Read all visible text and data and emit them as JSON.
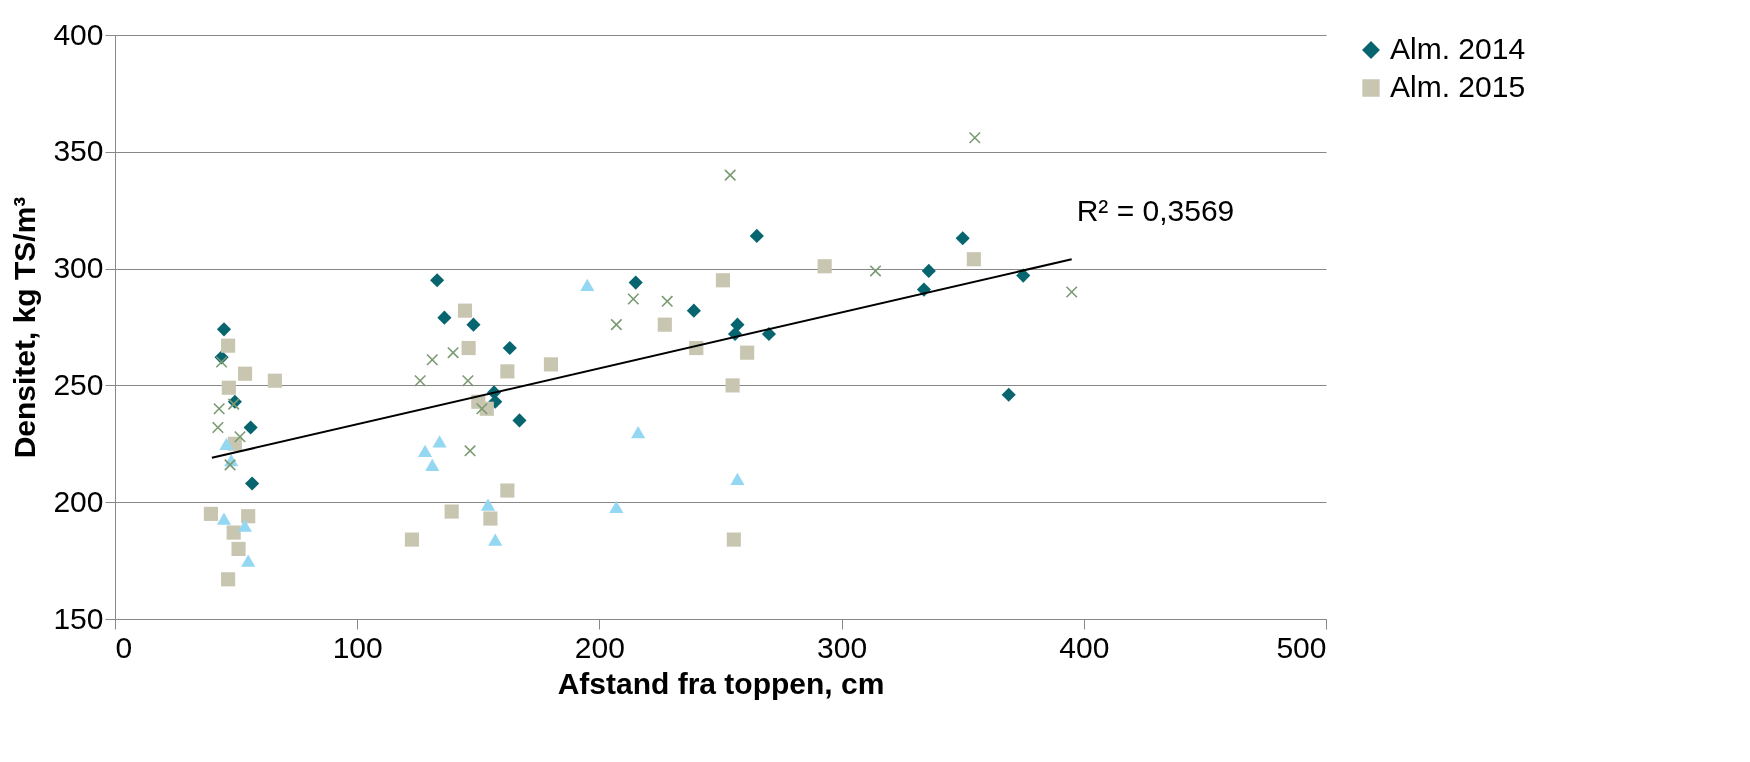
{
  "chart_data": {
    "type": "scatter",
    "xlabel": "Afstand fra toppen, cm",
    "ylabel": "Densitet, kg TS/m³",
    "xlim": [
      0,
      500
    ],
    "xticks": [
      0,
      100,
      200,
      300,
      400,
      500
    ],
    "ylim": [
      150,
      400
    ],
    "yticks": [
      150,
      200,
      250,
      300,
      350,
      400
    ],
    "grid": "y",
    "legend": "right",
    "annotations": [
      {
        "text": "R² = 0,3569",
        "x": 395,
        "y": 304
      }
    ],
    "series": [
      {
        "name": "Alm. 2014",
        "color": "#06656f",
        "marker": "diamond",
        "x": [
          45,
          44,
          49.5,
          56,
          56.6,
          133,
          136,
          148,
          163,
          156.5,
          157,
          167,
          215,
          239,
          257,
          256,
          270,
          265,
          336,
          334,
          350,
          375,
          369
        ],
        "values": [
          274,
          262,
          243,
          232,
          208,
          295,
          279,
          276,
          266,
          247,
          243,
          235,
          294,
          282,
          276,
          272,
          272,
          314,
          299,
          291,
          313,
          297,
          246
        ]
      },
      {
        "name": "Alm. 2015",
        "color": "#c8c6b0",
        "marker": "square",
        "x": [
          46.7,
          53.7,
          47,
          66,
          49.5,
          39.6,
          55,
          49,
          51,
          46.7,
          144.5,
          146,
          150,
          153.5,
          162,
          180,
          122.6,
          139,
          155,
          162,
          227,
          240,
          251,
          261,
          255,
          255.5,
          293,
          354.6
        ],
        "values": [
          267,
          255,
          249,
          252,
          225,
          195,
          194,
          187,
          180,
          167,
          282,
          266,
          243,
          240,
          256,
          259,
          184,
          196,
          193,
          205,
          276,
          266,
          295,
          264,
          250,
          184,
          301,
          304
        ]
      },
      {
        "color": "#94d7f2",
        "marker": "triangle",
        "x": [
          46,
          48,
          45,
          53.6,
          55,
          128,
          134,
          131,
          154,
          157,
          195,
          216,
          207,
          257
        ],
        "values": [
          225,
          218,
          193,
          190,
          175,
          222,
          226,
          216,
          199,
          184,
          293,
          230,
          198,
          210
        ]
      },
      {
        "color": "#7a9a72",
        "marker": "cross",
        "x": [
          44,
          49,
          43,
          42.5,
          51.6,
          47.5,
          126,
          131,
          139.6,
          145.7,
          151.5,
          146.6,
          207,
          214,
          228,
          254,
          314,
          355,
          395
        ],
        "values": [
          260,
          242,
          240,
          232,
          228,
          216,
          252,
          261,
          264,
          252,
          240,
          222,
          276,
          287,
          286,
          340,
          299,
          356,
          290
        ]
      },
      {
        "type": "line",
        "color": "#000000",
        "marker": "none",
        "x": [
          40,
          395
        ],
        "values": [
          219,
          304
        ]
      }
    ]
  }
}
